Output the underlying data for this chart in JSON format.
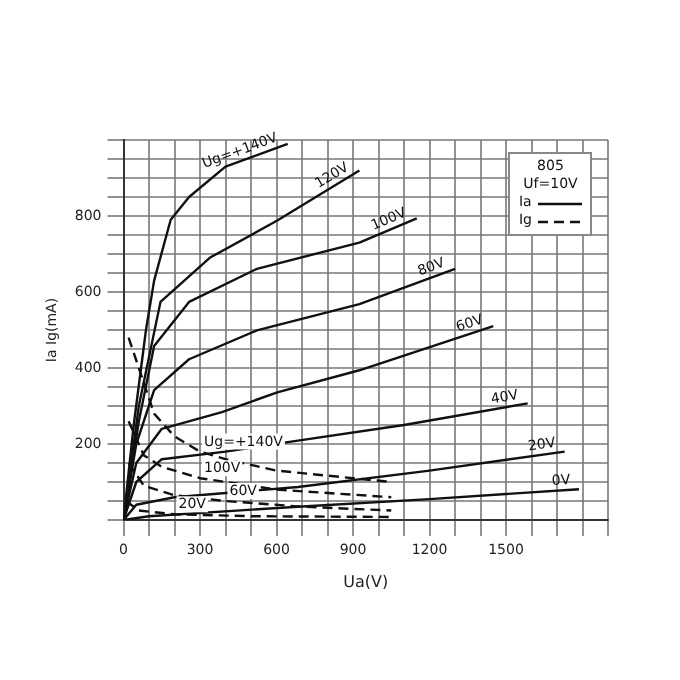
{
  "chart_data": {
    "type": "line",
    "xlabel": "Ua(V)",
    "ylabel": "Ia Ig(mA)",
    "legend_title": "805",
    "annotations": [
      "Uf=10V",
      "Ia",
      "Ig"
    ],
    "legend": "top right",
    "grid": true,
    "marker": "none",
    "xlim": [
      0,
      1900
    ],
    "ylim": [
      0,
      1000
    ],
    "xticks": [
      0,
      {
        "value": 100,
        "label": null
      },
      {
        "value": 200,
        "label": null
      },
      300,
      {
        "value": 400,
        "label": null
      },
      {
        "value": 500,
        "label": null
      },
      600,
      {
        "value": 700,
        "label": null
      },
      {
        "value": 800,
        "label": null
      },
      900,
      {
        "value": 1000,
        "label": null
      },
      {
        "value": 1100,
        "label": null
      },
      1200,
      {
        "value": 1300,
        "label": null
      },
      {
        "value": 1400,
        "label": null
      },
      1500,
      {
        "value": 1600,
        "label": null
      },
      {
        "value": 1700,
        "label": null
      },
      {
        "value": 1800,
        "label": null
      },
      {
        "value": 1900,
        "label": null
      }
    ],
    "yticks": [
      {
        "value": 0,
        "label": null
      },
      {
        "value": 50,
        "label": null
      },
      {
        "value": 100,
        "label": null
      },
      {
        "value": 150,
        "label": null
      },
      200,
      {
        "value": 250,
        "label": null
      },
      {
        "value": 300,
        "label": null
      },
      {
        "value": 350,
        "label": null
      },
      400,
      {
        "value": 450,
        "label": null
      },
      {
        "value": 500,
        "label": null
      },
      {
        "value": 550,
        "label": null
      },
      600,
      {
        "value": 650,
        "label": null
      },
      {
        "value": 700,
        "label": null
      },
      {
        "value": 750,
        "label": null
      },
      800,
      {
        "value": 850,
        "label": null
      },
      {
        "value": 900,
        "label": null
      },
      {
        "value": 950,
        "label": null
      },
      {
        "value": 1000,
        "label": null
      }
    ],
    "series": [
      {
        "name": "Ug=+140V",
        "color": "#111111",
        "line_style": "solid",
        "x": [
          0,
          40,
          88,
          120,
          185,
          257,
          400,
          644
        ],
        "values": [
          0,
          250,
          500,
          630,
          790,
          850,
          930,
          990
        ]
      },
      {
        "name": "120V",
        "color": "#111111",
        "line_style": "solid",
        "x": [
          0,
          60,
          145,
          338,
          603,
          925
        ],
        "values": [
          0,
          300,
          574,
          690,
          788,
          920
        ]
      },
      {
        "name": "100V",
        "color": "#111111",
        "line_style": "solid",
        "x": [
          0,
          60,
          120,
          257,
          523,
          925,
          1150
        ],
        "values": [
          0,
          260,
          458,
          574,
          661,
          730,
          794
        ]
      },
      {
        "name": "80V",
        "color": "#111111",
        "line_style": "solid",
        "x": [
          0,
          50,
          120,
          257,
          523,
          925,
          1300
        ],
        "values": [
          0,
          200,
          342,
          423,
          499,
          568,
          661
        ]
      },
      {
        "name": "60V",
        "color": "#111111",
        "line_style": "solid",
        "x": [
          0,
          50,
          150,
          386,
          603,
          925,
          1450
        ],
        "values": [
          0,
          150,
          240,
          284,
          336,
          394,
          510
        ]
      },
      {
        "name": "40V",
        "color": "#111111",
        "line_style": "solid",
        "x": [
          0,
          50,
          150,
          400,
          684,
          1100,
          1585
        ],
        "values": [
          0,
          100,
          160,
          180,
          209,
          250,
          307
        ]
      },
      {
        "name": "20V",
        "color": "#111111",
        "line_style": "solid",
        "x": [
          0,
          50,
          200,
          684,
          1200,
          1730
        ],
        "values": [
          0,
          40,
          60,
          87,
          130,
          180
        ]
      },
      {
        "name": "0V",
        "color": "#111111",
        "line_style": "solid",
        "x": [
          0,
          100,
          684,
          1200,
          1786
        ],
        "values": [
          0,
          10,
          35,
          55,
          81
        ]
      },
      {
        "name": "Ug=+140V",
        "color": "#111111",
        "line_style": "dashed",
        "x": [
          20,
          60,
          120,
          200,
          300,
          400,
          600,
          900,
          1050
        ],
        "values": [
          480,
          400,
          280,
          220,
          180,
          160,
          130,
          110,
          100
        ]
      },
      {
        "name": "100V",
        "color": "#111111",
        "line_style": "dashed",
        "x": [
          20,
          80,
          150,
          300,
          600,
          1050
        ],
        "values": [
          260,
          170,
          140,
          110,
          80,
          60
        ]
      },
      {
        "name": "60V",
        "color": "#111111",
        "line_style": "dashed",
        "x": [
          20,
          80,
          200,
          400,
          700,
          1050
        ],
        "values": [
          150,
          90,
          65,
          50,
          35,
          25
        ]
      },
      {
        "name": "20V",
        "color": "#111111",
        "line_style": "dashed",
        "x": [
          10,
          60,
          200,
          500,
          1050
        ],
        "values": [
          50,
          25,
          15,
          10,
          8
        ]
      }
    ]
  }
}
